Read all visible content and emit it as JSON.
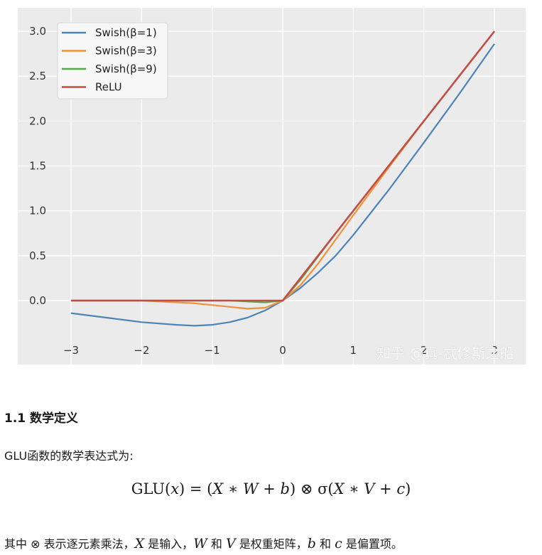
{
  "chart_data": {
    "type": "line",
    "title": "",
    "xlabel": "",
    "ylabel": "",
    "xlim": [
      -3.0,
      3.0
    ],
    "ylim": [
      -0.3,
      3.0
    ],
    "x_ticks": [
      -3,
      -2,
      -1,
      0,
      1,
      2,
      3
    ],
    "x_tick_labels": [
      "−3",
      "−2",
      "−1",
      "0",
      "1",
      "2",
      "3"
    ],
    "y_ticks": [
      0.0,
      0.5,
      1.0,
      1.5,
      2.0,
      2.5,
      3.0
    ],
    "y_tick_labels": [
      "0.0",
      "0.5",
      "1.0",
      "1.5",
      "2.0",
      "2.5",
      "3.0"
    ],
    "grid": true,
    "legend_position": "top-left",
    "x": [
      -3.0,
      -2.5,
      -2.0,
      -1.5,
      -1.25,
      -1.0,
      -0.75,
      -0.5,
      -0.25,
      0.0,
      0.25,
      0.5,
      0.75,
      1.0,
      1.5,
      2.0,
      2.5,
      3.0
    ],
    "series": [
      {
        "name": "Swish(β=1)",
        "color": "#4c84b8",
        "values": [
          -0.14,
          -0.19,
          -0.24,
          -0.27,
          -0.28,
          -0.27,
          -0.24,
          -0.19,
          -0.11,
          0.0,
          0.14,
          0.31,
          0.5,
          0.73,
          1.23,
          1.76,
          2.3,
          2.86
        ]
      },
      {
        "name": "Swish(β=3)",
        "color": "#f0923a",
        "values": [
          0.0,
          0.0,
          0.0,
          -0.02,
          -0.03,
          -0.05,
          -0.07,
          -0.09,
          -0.08,
          0.0,
          0.17,
          0.41,
          0.68,
          0.95,
          1.48,
          2.0,
          2.5,
          3.0
        ]
      },
      {
        "name": "Swish(β=9)",
        "color": "#55a74e",
        "values": [
          0.0,
          0.0,
          0.0,
          0.0,
          0.0,
          0.0,
          0.0,
          -0.01,
          -0.02,
          0.0,
          0.23,
          0.49,
          0.75,
          1.0,
          1.5,
          2.0,
          2.5,
          3.0
        ]
      },
      {
        "name": "ReLU",
        "color": "#c44e44",
        "values": [
          0.0,
          0.0,
          0.0,
          0.0,
          0.0,
          0.0,
          0.0,
          0.0,
          0.0,
          0.0,
          0.25,
          0.5,
          0.75,
          1.0,
          1.5,
          2.0,
          2.5,
          3.0
        ]
      }
    ]
  },
  "watermark": "知乎 @真-忒修斯之船",
  "section": {
    "heading": "1.1 数学定义",
    "intro": "GLU函数的数学表达式为:",
    "formula": {
      "fn": "GLU",
      "lp": "(",
      "x": "x",
      "rp_eq": ") = (",
      "X1": "X",
      "star1": " ∗ ",
      "W": "W",
      "plus1": " + ",
      "b": "b",
      "otimes_sigma": ") ⊗ σ(",
      "X2": "X",
      "star2": " ∗ ",
      "V": "V",
      "plus2": " + ",
      "c": "c",
      "end": ")"
    },
    "explain": {
      "t1": "其中 ⊗ 表示逐元素乘法，",
      "X": "X",
      "t2": " 是输入，",
      "W": "W",
      "t3": " 和 ",
      "V": "V",
      "t4": " 是权重矩阵，",
      "b": "b",
      "t5": " 和 ",
      "c": "c",
      "t6": " 是偏置项。"
    }
  }
}
